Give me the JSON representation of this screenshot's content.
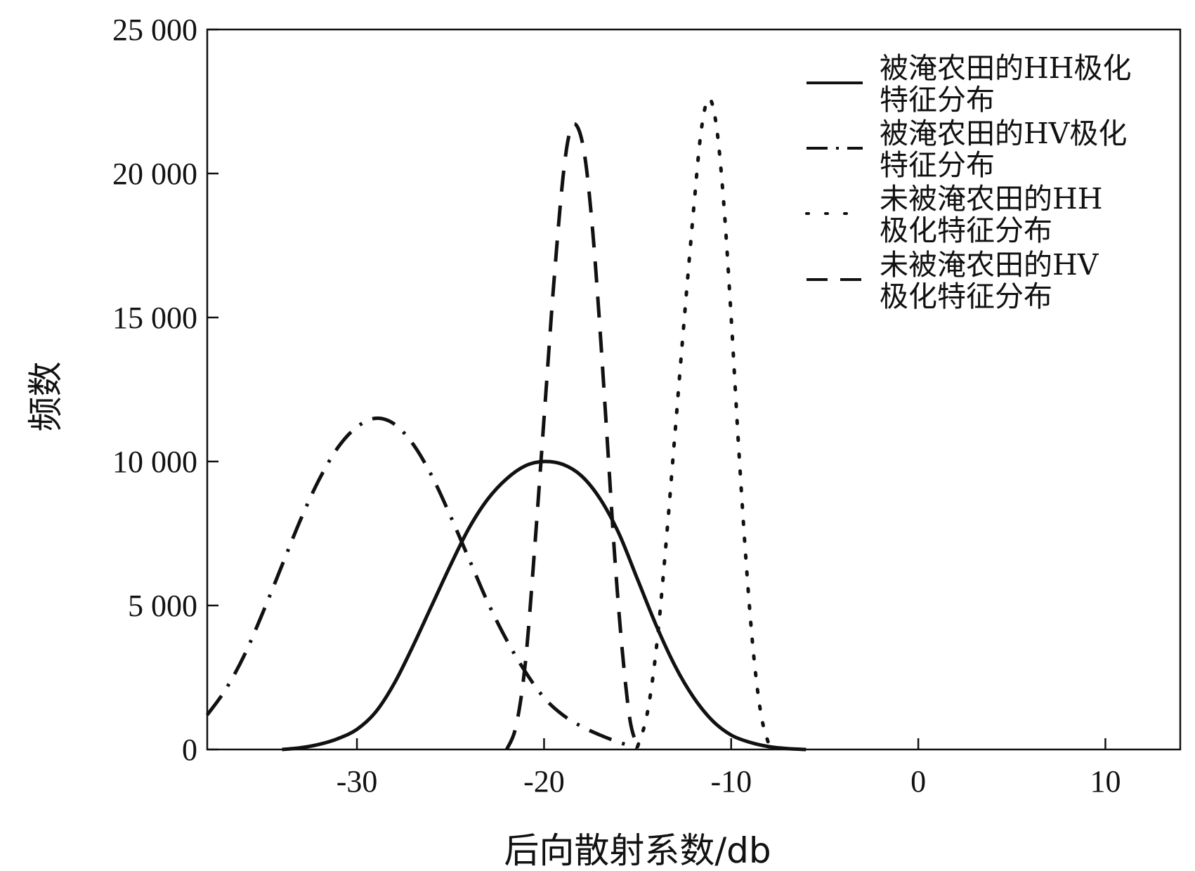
{
  "chart_data": {
    "type": "line",
    "title": "",
    "xlabel": "后向散射系数/db",
    "ylabel": "频数",
    "xlim": [
      -38,
      14
    ],
    "ylim": [
      0,
      25000
    ],
    "xticks": [
      -30,
      -20,
      -10,
      0,
      10
    ],
    "xtick_labels": [
      "-30",
      "-20",
      "-10",
      "0",
      "10"
    ],
    "yticks": [
      0,
      5000,
      10000,
      15000,
      20000,
      25000
    ],
    "ytick_labels": [
      "0",
      "5 000",
      "10 000",
      "15 000",
      "20 000",
      "25 000"
    ],
    "grid": false,
    "legend_position": "top-right",
    "series": [
      {
        "name": "被淹农田的HH极化特征分布",
        "legend_lines": [
          "被淹农田的HH极化",
          "特征分布"
        ],
        "style": "solid",
        "color": "#111111",
        "points": [
          [
            -34,
            0
          ],
          [
            -33,
            60
          ],
          [
            -32,
            180
          ],
          [
            -31,
            380
          ],
          [
            -30,
            700
          ],
          [
            -29,
            1300
          ],
          [
            -28,
            2300
          ],
          [
            -27,
            3600
          ],
          [
            -26,
            5000
          ],
          [
            -25,
            6400
          ],
          [
            -24,
            7700
          ],
          [
            -23,
            8700
          ],
          [
            -22,
            9400
          ],
          [
            -21,
            9850
          ],
          [
            -20,
            10000
          ],
          [
            -19,
            9900
          ],
          [
            -18,
            9500
          ],
          [
            -17,
            8700
          ],
          [
            -16,
            7500
          ],
          [
            -15,
            5900
          ],
          [
            -14,
            4300
          ],
          [
            -13,
            2900
          ],
          [
            -12,
            1800
          ],
          [
            -11,
            1000
          ],
          [
            -10,
            500
          ],
          [
            -9,
            250
          ],
          [
            -8,
            100
          ],
          [
            -7,
            30
          ],
          [
            -6,
            0
          ]
        ]
      },
      {
        "name": "被淹农田的HV极化特征分布",
        "legend_lines": [
          "被淹农田的HV极化",
          "特征分布"
        ],
        "style": "dashdot",
        "color": "#111111",
        "points": [
          [
            -38,
            1200
          ],
          [
            -37,
            2100
          ],
          [
            -36,
            3300
          ],
          [
            -35,
            4800
          ],
          [
            -34,
            6400
          ],
          [
            -33,
            8000
          ],
          [
            -32,
            9400
          ],
          [
            -31,
            10500
          ],
          [
            -30,
            11200
          ],
          [
            -29,
            11500
          ],
          [
            -28,
            11300
          ],
          [
            -27,
            10600
          ],
          [
            -26,
            9500
          ],
          [
            -25,
            8100
          ],
          [
            -24,
            6600
          ],
          [
            -23,
            5100
          ],
          [
            -22,
            3800
          ],
          [
            -21,
            2700
          ],
          [
            -20,
            1800
          ],
          [
            -19,
            1200
          ],
          [
            -18,
            800
          ],
          [
            -17,
            500
          ],
          [
            -16,
            250
          ],
          [
            -15,
            60
          ]
        ]
      },
      {
        "name": "未被淹农田的HH极化特征分布",
        "legend_lines": [
          "未被淹农田的HH",
          "极化特征分布"
        ],
        "style": "dotted",
        "color": "#111111",
        "points": [
          [
            -15,
            100
          ],
          [
            -14.5,
            1200
          ],
          [
            -14,
            3500
          ],
          [
            -13.5,
            7000
          ],
          [
            -13,
            11000
          ],
          [
            -12.5,
            15000
          ],
          [
            -12,
            18800
          ],
          [
            -11.6,
            21500
          ],
          [
            -11.2,
            22600
          ],
          [
            -10.8,
            21700
          ],
          [
            -10.4,
            19000
          ],
          [
            -10,
            15000
          ],
          [
            -9.6,
            10500
          ],
          [
            -9.2,
            6500
          ],
          [
            -8.8,
            3300
          ],
          [
            -8.4,
            1200
          ],
          [
            -8,
            200
          ]
        ]
      },
      {
        "name": "未被淹农田的HV极化特征分布",
        "legend_lines": [
          "未被淹农田的HV",
          "极化特征分布"
        ],
        "style": "dashed",
        "color": "#111111",
        "points": [
          [
            -22,
            0
          ],
          [
            -21.5,
            800
          ],
          [
            -21,
            3000
          ],
          [
            -20.5,
            7000
          ],
          [
            -20,
            11500
          ],
          [
            -19.5,
            16000
          ],
          [
            -19,
            19800
          ],
          [
            -18.6,
            21500
          ],
          [
            -18.2,
            21600
          ],
          [
            -17.8,
            20500
          ],
          [
            -17.4,
            18000
          ],
          [
            -17,
            14500
          ],
          [
            -16.6,
            10500
          ],
          [
            -16.2,
            6500
          ],
          [
            -15.8,
            3300
          ],
          [
            -15.4,
            1000
          ],
          [
            -15,
            100
          ]
        ]
      }
    ]
  }
}
